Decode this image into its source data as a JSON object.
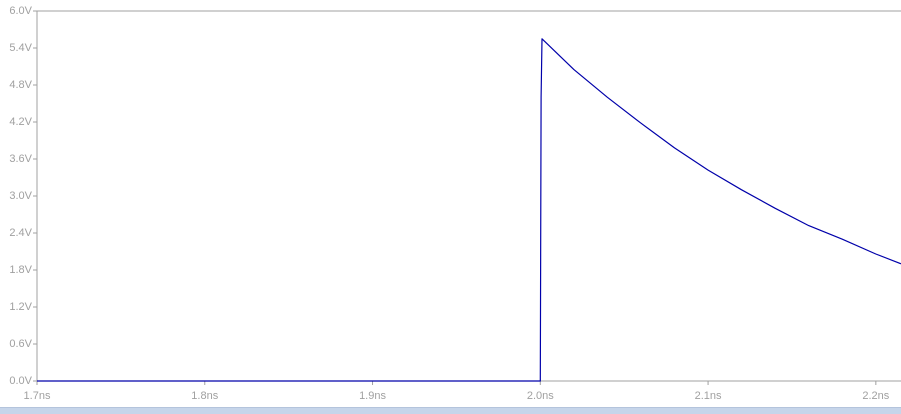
{
  "chart_data": {
    "type": "line",
    "title": "",
    "xlabel": "",
    "ylabel": "",
    "x_unit": "ns",
    "y_unit": "V",
    "xlim": [
      1.7,
      2.215
    ],
    "ylim": [
      0.0,
      6.0
    ],
    "x_ticks": [
      "1.7ns",
      "1.8ns",
      "1.9ns",
      "2.0ns",
      "2.1ns",
      "2.2ns"
    ],
    "x_tick_values": [
      1.7,
      1.8,
      1.9,
      2.0,
      2.1,
      2.2
    ],
    "y_ticks": [
      "0.0V",
      "0.6V",
      "1.2V",
      "1.8V",
      "2.4V",
      "3.0V",
      "3.6V",
      "4.2V",
      "4.8V",
      "5.4V",
      "6.0V"
    ],
    "y_tick_values": [
      0.0,
      0.6,
      1.2,
      1.8,
      2.4,
      3.0,
      3.6,
      4.2,
      4.8,
      5.4,
      6.0
    ],
    "grid": false,
    "line_color": "#0000aa",
    "axis_color": "#a0a0a0",
    "series": [
      {
        "x": [
          1.7,
          1.999,
          2.0,
          2.0005,
          2.001,
          2.02,
          2.04,
          2.06,
          2.08,
          2.1,
          2.12,
          2.14,
          2.16,
          2.18,
          2.2,
          2.215
        ],
        "y": [
          0.0,
          0.0,
          0.0,
          4.6,
          5.55,
          5.05,
          4.6,
          4.18,
          3.78,
          3.42,
          3.1,
          2.8,
          2.52,
          2.3,
          2.06,
          1.9
        ]
      }
    ]
  }
}
